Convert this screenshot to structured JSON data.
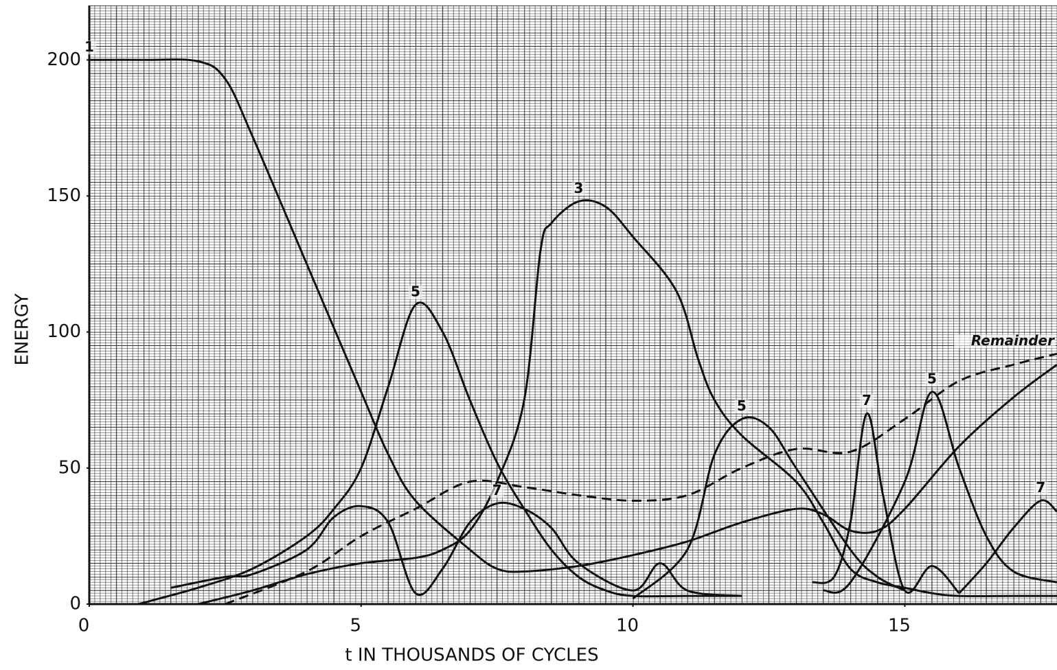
{
  "chart_data": {
    "type": "line",
    "xlabel": "t IN THOUSANDS OF CYCLES",
    "ylabel": "ENERGY",
    "xlim": [
      0,
      17.8
    ],
    "ylim": [
      0,
      220
    ],
    "xticks": [
      0,
      5,
      10,
      15
    ],
    "yticks": [
      0,
      50,
      100,
      150,
      200
    ],
    "grid": true,
    "color": "#111111",
    "series": [
      {
        "name": "1",
        "style": "solid",
        "x": [
          0,
          1,
          2,
          2.5,
          3,
          4,
          5,
          5.5,
          6,
          7,
          7.5,
          8,
          9,
          10,
          11,
          12,
          13,
          13.5,
          14,
          14.5,
          15,
          16,
          17,
          17.8
        ],
        "values": [
          200,
          200,
          199.5,
          193,
          172,
          125,
          78,
          55,
          38,
          20,
          13,
          12,
          14,
          18,
          23,
          30,
          35,
          33,
          27,
          27,
          35,
          58,
          76,
          88
        ]
      },
      {
        "name": "3",
        "style": "solid",
        "x": [
          2,
          3,
          4,
          5,
          6,
          6.5,
          7,
          7.5,
          8,
          8.3,
          8.5,
          9,
          9.5,
          10,
          10.8,
          11.2,
          11.5,
          12,
          13,
          13.5,
          14,
          14.5,
          15,
          15.5,
          16,
          17,
          17.8
        ],
        "values": [
          0,
          5,
          11,
          15,
          17,
          20,
          27,
          45,
          75,
          130,
          140,
          148,
          146,
          135,
          115,
          90,
          75,
          62,
          45,
          30,
          13,
          8,
          6,
          4,
          3,
          3,
          3
        ]
      },
      {
        "name": "5",
        "style": "solid",
        "x": [
          0.9,
          2,
          3,
          4,
          4.5,
          5,
          5.5,
          6,
          6.5,
          7,
          7.5,
          8,
          8.5,
          9,
          9.5,
          10,
          11,
          12
        ],
        "values": [
          0,
          6,
          13,
          25,
          35,
          50,
          80,
          110,
          100,
          75,
          52,
          35,
          20,
          10,
          5,
          3,
          3,
          3
        ]
      },
      {
        "name": "7",
        "style": "solid",
        "x": [
          1.5,
          2.5,
          3,
          4,
          4.5,
          5,
          5.5,
          6,
          6.5,
          7,
          7.5,
          8,
          8.5,
          9,
          10,
          10.5,
          11,
          12
        ],
        "values": [
          6,
          10,
          11,
          20,
          32,
          36,
          30,
          4,
          13,
          30,
          37,
          35,
          28,
          15,
          5,
          15,
          5,
          3
        ]
      },
      {
        "name": "5",
        "style": "solid",
        "x": [
          10,
          11,
          11.5,
          12,
          12.5,
          13,
          14,
          14.5,
          15
        ],
        "values": [
          2,
          20,
          55,
          68,
          65,
          50,
          20,
          10,
          5
        ]
      },
      {
        "name": "7",
        "style": "solid",
        "x": [
          13.3,
          13.7,
          14,
          14.3,
          14.6,
          15,
          15.5,
          16
        ],
        "values": [
          8,
          10,
          30,
          70,
          40,
          5,
          14,
          4
        ]
      },
      {
        "name": "5",
        "style": "solid",
        "x": [
          13.5,
          14,
          15,
          15.5,
          16,
          16.5,
          17,
          17.8
        ],
        "values": [
          5,
          8,
          45,
          78,
          50,
          25,
          12,
          8
        ]
      },
      {
        "name": "7",
        "style": "solid",
        "x": [
          16,
          16.5,
          17,
          17.5,
          17.8
        ],
        "values": [
          4,
          15,
          28,
          38,
          34
        ]
      },
      {
        "name": "Remainder",
        "style": "dashed",
        "x": [
          2.5,
          4,
          5,
          6,
          7,
          8,
          9,
          10,
          11,
          12,
          13,
          14,
          15,
          16,
          17,
          17.8
        ],
        "values": [
          0,
          12,
          25,
          35,
          45,
          43,
          40,
          38,
          40,
          50,
          57,
          56,
          68,
          82,
          88,
          92
        ]
      }
    ]
  }
}
